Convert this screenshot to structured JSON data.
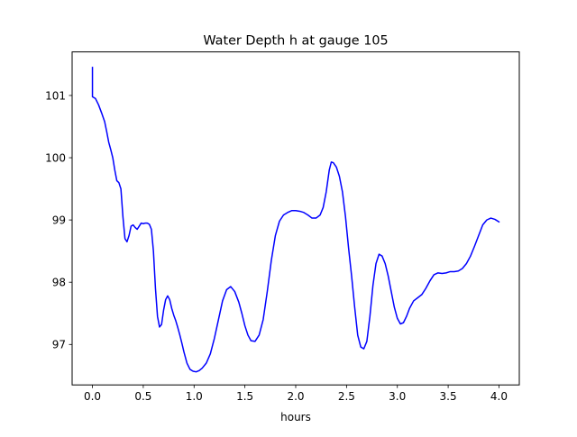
{
  "chart_data": {
    "type": "line",
    "title": "Water Depth h at gauge 105",
    "xlabel": "hours",
    "ylabel": "",
    "xlim": [
      -0.2,
      4.2
    ],
    "ylim": [
      96.35,
      101.7
    ],
    "xticks": [
      0.0,
      0.5,
      1.0,
      1.5,
      2.0,
      2.5,
      3.0,
      3.5,
      4.0
    ],
    "xtick_labels": [
      "0.0",
      "0.5",
      "1.0",
      "1.5",
      "2.0",
      "2.5",
      "3.0",
      "3.5",
      "4.0"
    ],
    "yticks": [
      97,
      98,
      99,
      100,
      101
    ],
    "ytick_labels": [
      "97",
      "98",
      "99",
      "100",
      "101"
    ],
    "grid": false,
    "series": [
      {
        "color": "#0000ff",
        "x": [
          0.0,
          0.0,
          0.0,
          0.03,
          0.06,
          0.09,
          0.12,
          0.14,
          0.16,
          0.18,
          0.2,
          0.22,
          0.24,
          0.26,
          0.28,
          0.3,
          0.32,
          0.34,
          0.36,
          0.38,
          0.4,
          0.42,
          0.44,
          0.46,
          0.48,
          0.5,
          0.52,
          0.54,
          0.56,
          0.58,
          0.6,
          0.62,
          0.64,
          0.66,
          0.68,
          0.7,
          0.72,
          0.74,
          0.76,
          0.78,
          0.8,
          0.82,
          0.84,
          0.86,
          0.88,
          0.9,
          0.93,
          0.96,
          0.99,
          1.02,
          1.05,
          1.08,
          1.12,
          1.16,
          1.2,
          1.24,
          1.28,
          1.32,
          1.36,
          1.4,
          1.44,
          1.47,
          1.5,
          1.53,
          1.56,
          1.6,
          1.64,
          1.68,
          1.72,
          1.76,
          1.8,
          1.84,
          1.88,
          1.92,
          1.96,
          2.0,
          2.04,
          2.08,
          2.12,
          2.16,
          2.2,
          2.24,
          2.27,
          2.3,
          2.33,
          2.35,
          2.37,
          2.4,
          2.43,
          2.46,
          2.49,
          2.52,
          2.55,
          2.58,
          2.61,
          2.64,
          2.67,
          2.7,
          2.73,
          2.76,
          2.79,
          2.82,
          2.85,
          2.88,
          2.91,
          2.94,
          2.97,
          3.0,
          3.03,
          3.06,
          3.09,
          3.12,
          3.16,
          3.2,
          3.24,
          3.28,
          3.32,
          3.36,
          3.4,
          3.44,
          3.48,
          3.52,
          3.56,
          3.6,
          3.64,
          3.68,
          3.72,
          3.76,
          3.8,
          3.84,
          3.88,
          3.92,
          3.96,
          4.0
        ],
        "y": [
          101.45,
          101.2,
          100.98,
          100.95,
          100.85,
          100.72,
          100.58,
          100.42,
          100.25,
          100.13,
          100.0,
          99.8,
          99.63,
          99.6,
          99.5,
          99.05,
          98.7,
          98.65,
          98.75,
          98.9,
          98.92,
          98.88,
          98.85,
          98.9,
          98.95,
          98.94,
          98.95,
          98.95,
          98.93,
          98.85,
          98.5,
          97.9,
          97.45,
          97.28,
          97.32,
          97.55,
          97.72,
          97.78,
          97.72,
          97.58,
          97.47,
          97.38,
          97.27,
          97.15,
          97.02,
          96.88,
          96.7,
          96.6,
          96.57,
          96.56,
          96.58,
          96.62,
          96.7,
          96.85,
          97.1,
          97.4,
          97.7,
          97.88,
          97.93,
          97.85,
          97.68,
          97.5,
          97.3,
          97.15,
          97.06,
          97.05,
          97.15,
          97.4,
          97.85,
          98.35,
          98.75,
          98.98,
          99.08,
          99.12,
          99.15,
          99.15,
          99.14,
          99.12,
          99.08,
          99.03,
          99.03,
          99.08,
          99.2,
          99.45,
          99.8,
          99.93,
          99.92,
          99.85,
          99.7,
          99.45,
          99.05,
          98.55,
          98.1,
          97.6,
          97.15,
          96.96,
          96.93,
          97.05,
          97.45,
          97.95,
          98.3,
          98.45,
          98.42,
          98.3,
          98.1,
          97.85,
          97.6,
          97.42,
          97.33,
          97.35,
          97.45,
          97.58,
          97.7,
          97.75,
          97.8,
          97.9,
          98.02,
          98.12,
          98.15,
          98.14,
          98.15,
          98.17,
          98.17,
          98.18,
          98.22,
          98.3,
          98.42,
          98.58,
          98.75,
          98.92,
          99.0,
          99.03,
          99.01,
          98.97
        ]
      }
    ]
  }
}
